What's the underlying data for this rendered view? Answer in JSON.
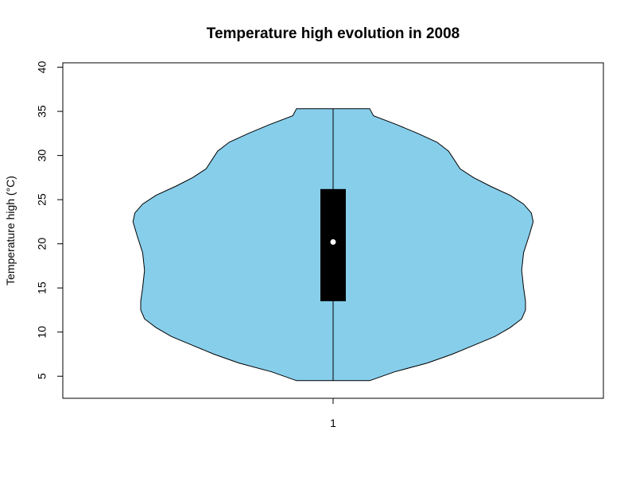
{
  "chart_data": {
    "type": "violin",
    "title": "Temperature high evolution in 2008",
    "xlabel": "",
    "ylabel": "Temperature high (°C)",
    "categories": [
      "1"
    ],
    "ylim": [
      2.5,
      40.5
    ],
    "yticks": [
      5,
      10,
      15,
      20,
      25,
      30,
      35,
      40
    ],
    "ytick_labels": [
      "5",
      "10",
      "15",
      "20",
      "25",
      "30",
      "35",
      "40"
    ],
    "xtick_labels": [
      "1"
    ],
    "grid": false,
    "legend": "none",
    "colors": {
      "violin_fill": "#87CEEB",
      "box_fill": "#000000",
      "median_point": "#ffffff"
    },
    "violin": {
      "min": 4.5,
      "max": 35.3,
      "q1": 13.5,
      "median": 20.2,
      "q3": 26.2,
      "density": [
        {
          "y": 4.5,
          "w": 0.19
        },
        {
          "y": 5.5,
          "w": 0.32
        },
        {
          "y": 6.5,
          "w": 0.49
        },
        {
          "y": 7.5,
          "w": 0.62
        },
        {
          "y": 8.5,
          "w": 0.73
        },
        {
          "y": 9.5,
          "w": 0.84
        },
        {
          "y": 10.5,
          "w": 0.92
        },
        {
          "y": 11.5,
          "w": 0.98
        },
        {
          "y": 12.5,
          "w": 1.0
        },
        {
          "y": 13.5,
          "w": 1.0
        },
        {
          "y": 15.0,
          "w": 0.99
        },
        {
          "y": 17.0,
          "w": 0.98
        },
        {
          "y": 19.0,
          "w": 0.99
        },
        {
          "y": 21.0,
          "w": 1.02
        },
        {
          "y": 22.5,
          "w": 1.04
        },
        {
          "y": 23.5,
          "w": 1.03
        },
        {
          "y": 24.5,
          "w": 0.99
        },
        {
          "y": 25.5,
          "w": 0.92
        },
        {
          "y": 26.5,
          "w": 0.82
        },
        {
          "y": 27.5,
          "w": 0.73
        },
        {
          "y": 28.5,
          "w": 0.66
        },
        {
          "y": 29.5,
          "w": 0.63
        },
        {
          "y": 30.5,
          "w": 0.6
        },
        {
          "y": 31.5,
          "w": 0.54
        },
        {
          "y": 32.5,
          "w": 0.44
        },
        {
          "y": 33.5,
          "w": 0.33
        },
        {
          "y": 34.5,
          "w": 0.21
        },
        {
          "y": 35.3,
          "w": 0.19
        }
      ]
    }
  }
}
